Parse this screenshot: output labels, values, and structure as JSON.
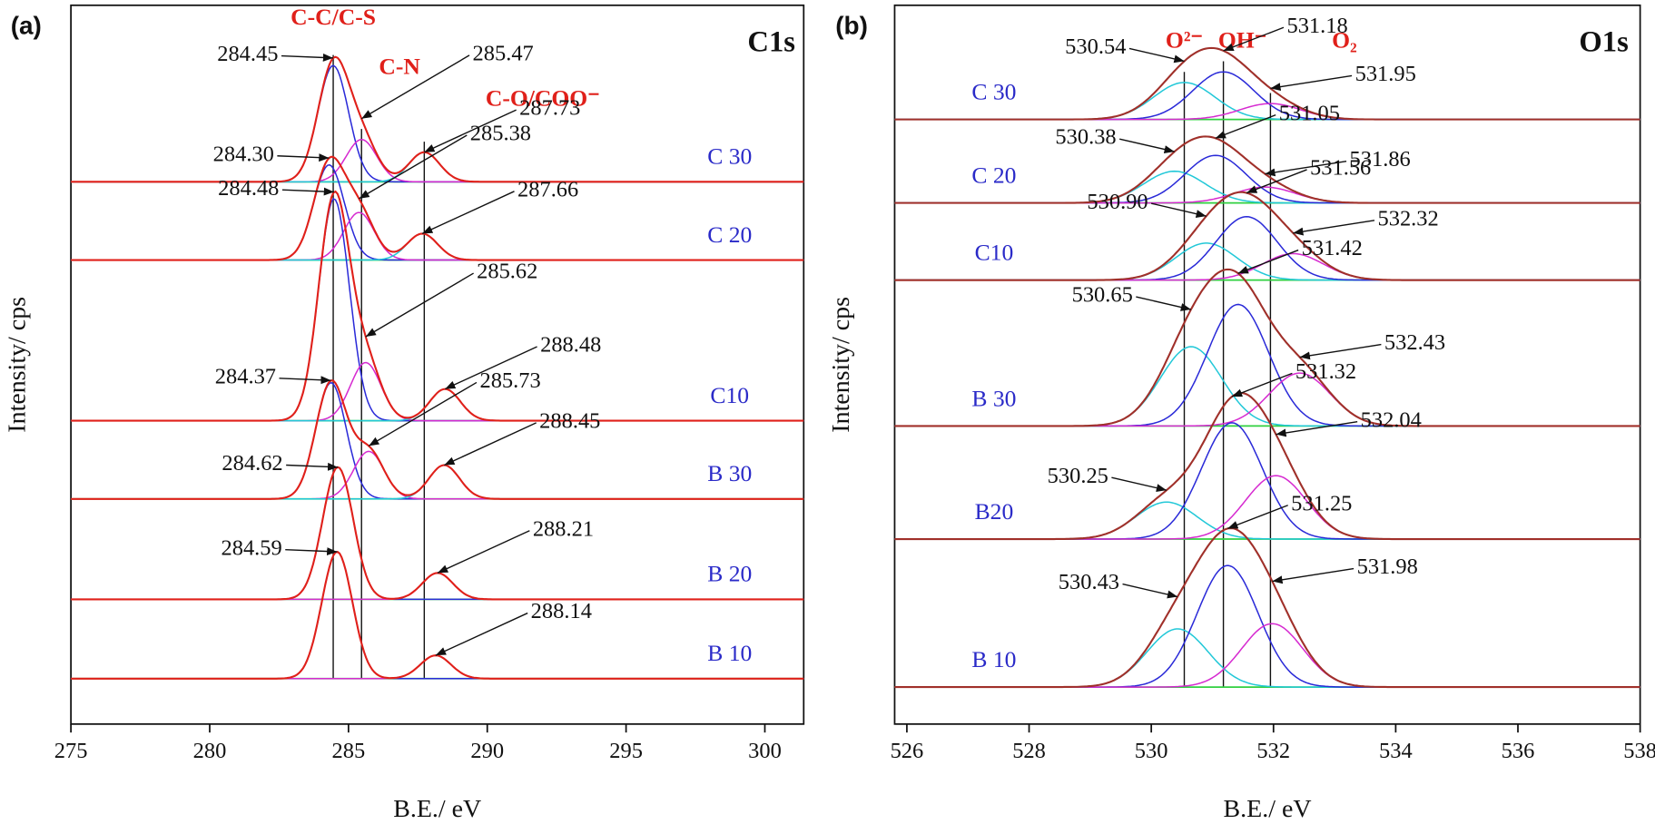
{
  "chart_data": [
    {
      "type": "xps",
      "panel_label": "(a)",
      "core_level": "C1s",
      "xlabel": "B.E./ eV",
      "ylabel": "Intensity/ cps",
      "xlim": [
        275,
        301.4
      ],
      "xticks": [
        275,
        280,
        285,
        290,
        295,
        300
      ],
      "groups": [
        "C-C/C-S",
        "C-N",
        "C-O/COO⁻"
      ],
      "component_colors": [
        "#2a2ad8",
        "#d62ad0",
        "#22c8d8"
      ],
      "envelope_color": "#e0201a",
      "baseline_color": "#30d040",
      "spectra": [
        {
          "name": "C 30",
          "peaks": [
            284.45,
            285.47,
            287.73
          ],
          "value_labels": [
            "284.45",
            "285.47",
            "287.73"
          ],
          "heights": [
            110,
            40,
            28
          ]
        },
        {
          "name": "C 20",
          "peaks": [
            284.3,
            285.38,
            287.66
          ],
          "value_labels": [
            "284.30",
            "285.38",
            "287.66"
          ],
          "heights": [
            90,
            45,
            25
          ]
        },
        {
          "name": "C10",
          "peaks": [
            284.48,
            285.62,
            288.48
          ],
          "value_labels": [
            "284.48",
            "285.62",
            "288.48"
          ],
          "heights": [
            210,
            55,
            30
          ]
        },
        {
          "name": "B 30",
          "peaks": [
            284.37,
            285.73,
            288.45
          ],
          "value_labels": [
            "284.37",
            "285.73",
            "288.45"
          ],
          "heights": [
            110,
            45,
            32
          ]
        },
        {
          "name": "B 20",
          "peaks": [
            284.62,
            288.21
          ],
          "value_labels": [
            "284.62",
            "288.21"
          ],
          "heights": [
            125,
            25
          ]
        },
        {
          "name": "B 10",
          "peaks": [
            284.59,
            288.14
          ],
          "value_labels": [
            "284.59",
            "288.14"
          ],
          "heights": [
            120,
            22
          ]
        }
      ]
    },
    {
      "type": "xps",
      "panel_label": "(b)",
      "core_level": "O1s",
      "xlabel": "B.E./ eV",
      "ylabel": "Intensity/ cps",
      "xlim": [
        525.8,
        538
      ],
      "xticks": [
        526,
        528,
        530,
        532,
        534,
        536,
        538
      ],
      "groups": [
        "O²⁻",
        "OH⁻",
        "O₂"
      ],
      "component_colors": [
        "#22c8d8",
        "#2a2ad8",
        "#d62ad0"
      ],
      "envelope_color": "#a0302a",
      "baseline_color": "#30d040",
      "spectra": [
        {
          "name": "C 30",
          "peaks": [
            530.54,
            531.18,
            531.95
          ],
          "value_labels": [
            "530.54",
            "531.18",
            "531.95"
          ],
          "heights": [
            35,
            45,
            15
          ]
        },
        {
          "name": "C 20",
          "peaks": [
            530.38,
            531.05,
            531.86
          ],
          "value_labels": [
            "530.38",
            "531.05",
            "531.86"
          ],
          "heights": [
            30,
            45,
            15
          ]
        },
        {
          "name": "C10",
          "peaks": [
            530.9,
            531.56,
            532.32
          ],
          "value_labels": [
            "530.90",
            "531.56",
            "532.32"
          ],
          "heights": [
            35,
            60,
            25
          ]
        },
        {
          "name": "B 30",
          "peaks": [
            530.65,
            531.42,
            532.43
          ],
          "value_labels": [
            "530.65",
            "531.42",
            "532.43"
          ],
          "heights": [
            75,
            115,
            50
          ]
        },
        {
          "name": "B20",
          "peaks": [
            530.25,
            531.32,
            532.04
          ],
          "value_labels": [
            "530.25",
            "531.32",
            "532.04"
          ],
          "heights": [
            35,
            110,
            60
          ]
        },
        {
          "name": "B 10",
          "peaks": [
            530.43,
            531.25,
            531.98
          ],
          "value_labels": [
            "530.43",
            "531.25",
            "531.98"
          ],
          "heights": [
            55,
            115,
            60
          ]
        }
      ]
    }
  ]
}
